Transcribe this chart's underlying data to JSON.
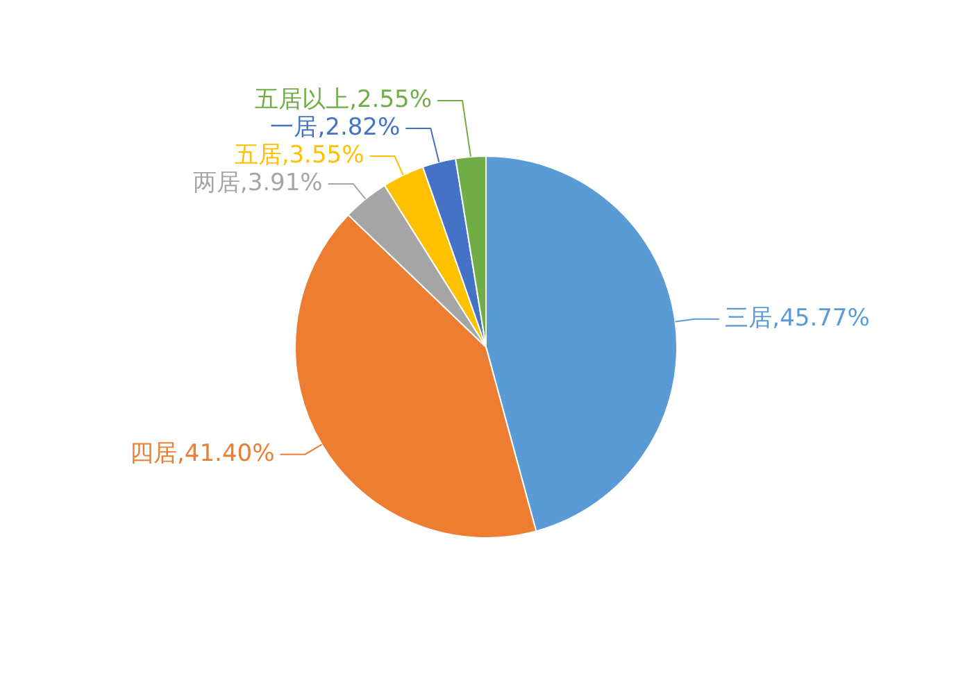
{
  "chart_data": {
    "type": "pie",
    "categories": [
      "三居",
      "四居",
      "两居",
      "五居",
      "一居",
      "五居以上"
    ],
    "values": [
      45.77,
      41.4,
      3.91,
      3.55,
      2.82,
      2.55
    ],
    "colors": [
      "#5b9bd5",
      "#ed7d31",
      "#a5a5a5",
      "#ffc000",
      "#4472c4",
      "#70ad47"
    ],
    "value_labels": [
      "45.77%",
      "41.40%",
      "3.91%",
      "3.55%",
      "2.82%",
      "2.55%"
    ],
    "legend": false
  }
}
